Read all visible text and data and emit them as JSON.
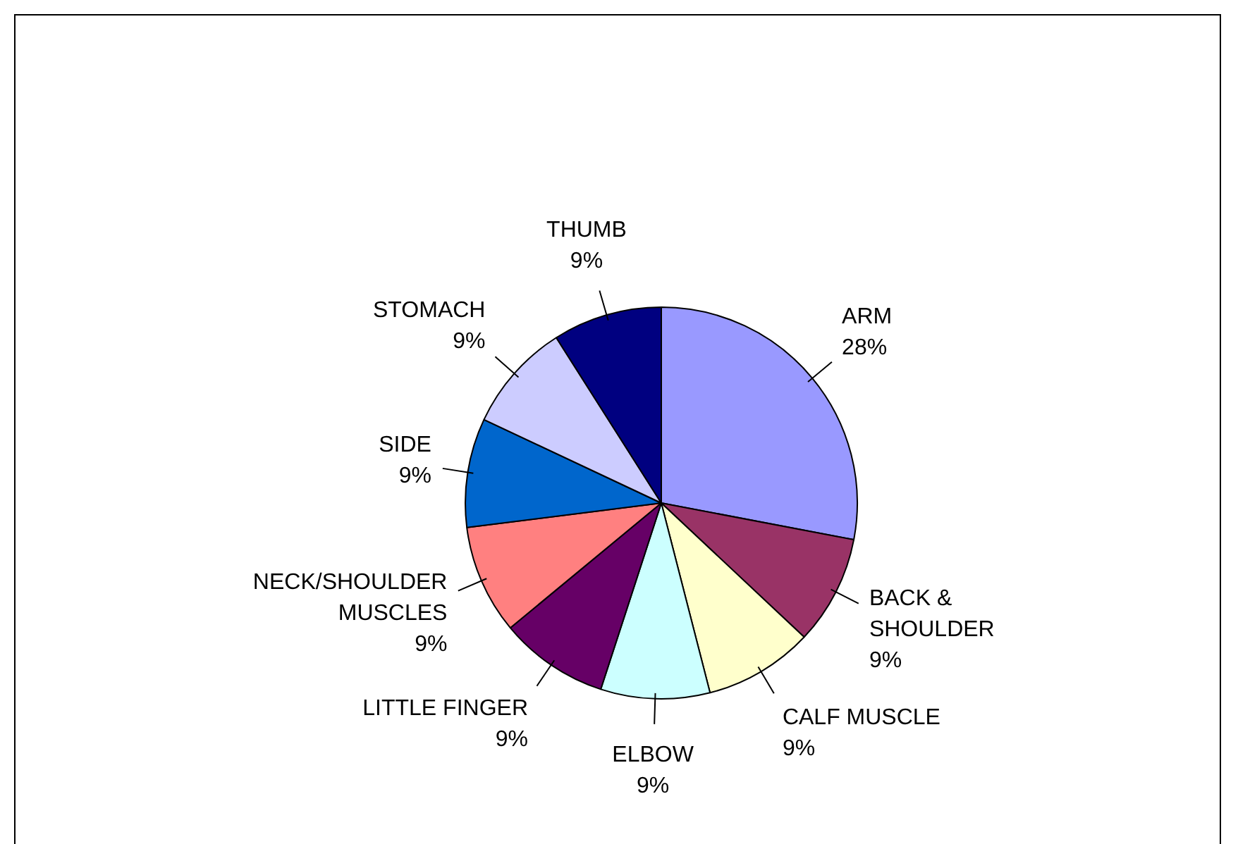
{
  "chart_data": {
    "type": "pie",
    "categories": [
      "ARM",
      "BACK & SHOULDER",
      "CALF MUSCLE",
      "ELBOW",
      "LITTLE FINGER",
      "NECK/SHOULDER MUSCLES",
      "SIDE",
      "STOMACH",
      "THUMB"
    ],
    "values": [
      28,
      9,
      9,
      9,
      9,
      9,
      9,
      9,
      9
    ],
    "value_labels": [
      "28%",
      "9%",
      "9%",
      "9%",
      "9%",
      "9%",
      "9%",
      "9%",
      "9%"
    ],
    "colors": [
      "#9999ff",
      "#993366",
      "#ffffcc",
      "#ccffff",
      "#660066",
      "#ff8080",
      "#0066cc",
      "#ccccff",
      "#000080"
    ],
    "legend": false
  }
}
